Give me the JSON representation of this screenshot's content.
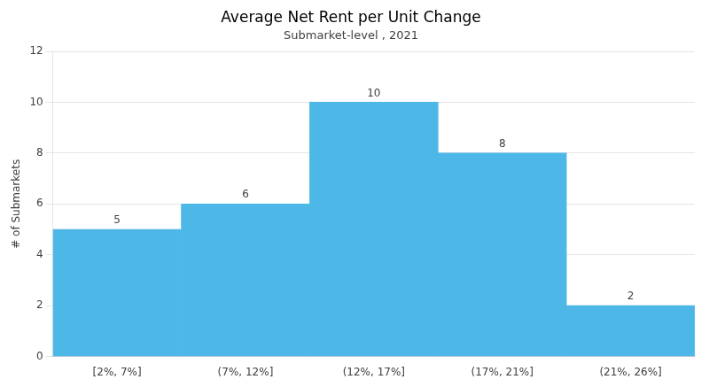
{
  "chart_data": {
    "type": "bar",
    "title": "Average Net Rent per Unit Change",
    "subtitle": "Submarket-level , 2021",
    "categories": [
      "[2%, 7%]",
      "(7%, 12%]",
      "(12%, 17%]",
      "(17%, 21%]",
      "(21%, 26%]"
    ],
    "values": [
      5,
      6,
      10,
      8,
      2
    ],
    "color": "#4DB8E8",
    "ylabel": "# of Submarkets",
    "ylim": [
      0,
      12
    ],
    "yticks": [
      0,
      2,
      4,
      6,
      8,
      10,
      12
    ],
    "grid": true,
    "data_labels": true
  }
}
